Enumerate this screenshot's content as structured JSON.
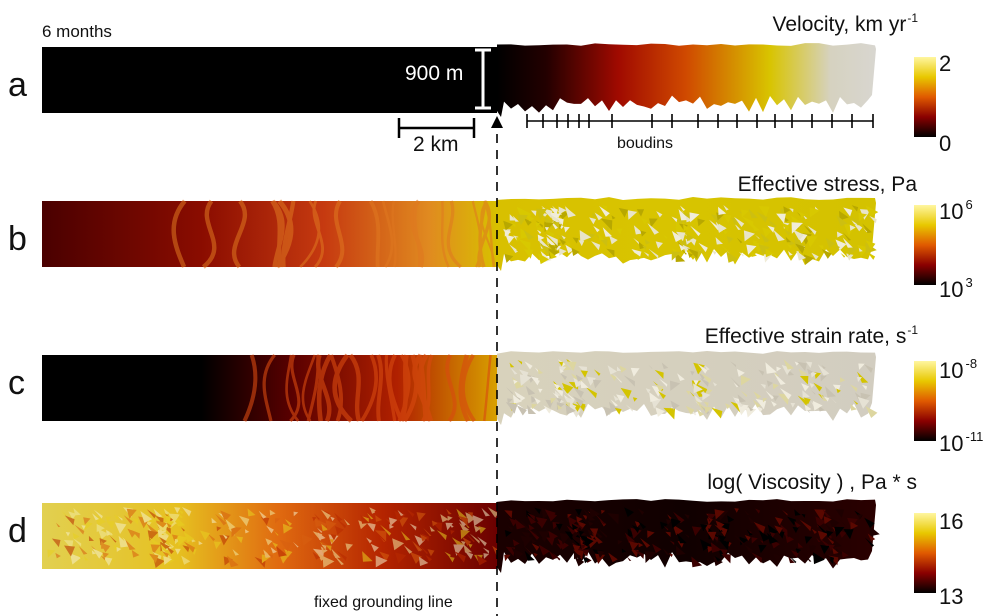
{
  "time_label": "6 months",
  "grounding_line_label": "fixed grounding line",
  "annotations": {
    "thickness": "900 m",
    "length": "2 km",
    "boudins": "boudins"
  },
  "panels": [
    {
      "letter": "a",
      "title": "Velocity, km yr",
      "title_sup": "-1",
      "colorbar": {
        "max": "2",
        "max_sup": "",
        "min": "0",
        "min_sup": "",
        "colors": [
          "#000000",
          "#8a0000",
          "#e05a00",
          "#e8c800",
          "#fff6a0"
        ]
      }
    },
    {
      "letter": "b",
      "title": "Effective stress, Pa",
      "title_sup": "",
      "colorbar": {
        "max": "10",
        "max_sup": "6",
        "min": "10",
        "min_sup": "3",
        "colors": [
          "#000000",
          "#8a0000",
          "#e05a00",
          "#e8c800",
          "#fff6a0"
        ]
      }
    },
    {
      "letter": "c",
      "title": "Effective strain rate,  s",
      "title_sup": "-1",
      "colorbar": {
        "max": "10",
        "max_sup": "-8",
        "min": "10",
        "min_sup": "-11",
        "colors": [
          "#000000",
          "#8a0000",
          "#e05a00",
          "#e8c800",
          "#fff6a0"
        ]
      }
    },
    {
      "letter": "d",
      "title": "log( Viscosity ) , Pa * s",
      "title_sup": "",
      "colorbar": {
        "max": "16",
        "max_sup": "",
        "min": "13",
        "min_sup": "",
        "colors": [
          "#000000",
          "#8a0000",
          "#e05a00",
          "#e8c800",
          "#fff6a0"
        ]
      }
    }
  ],
  "colors": {
    "black": "#000000",
    "dark_red": "#5a0000",
    "red": "#b51400",
    "orange": "#e0641a",
    "yellow": "#d8c800",
    "pale": "#d6d0b8",
    "grey": "#cfcac0"
  }
}
